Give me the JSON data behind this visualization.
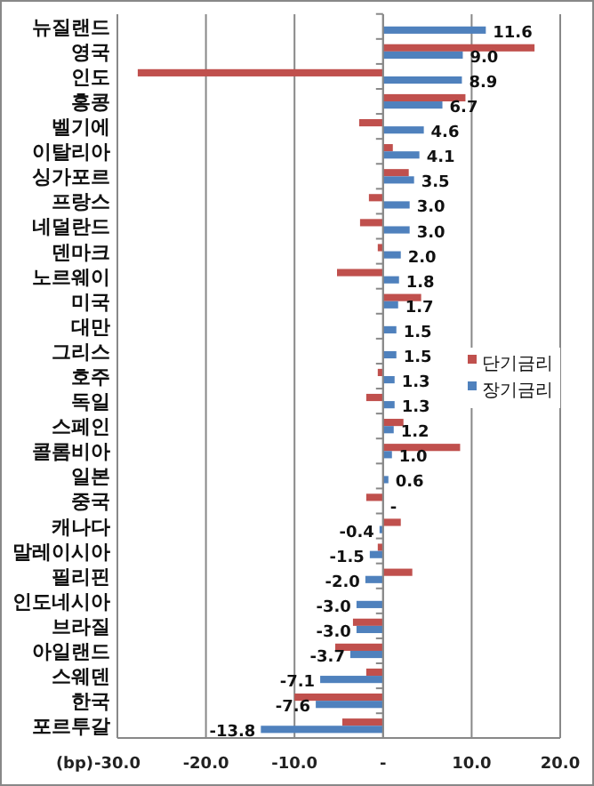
{
  "chart_data": {
    "type": "bar",
    "orientation": "horizontal",
    "categories": [
      "뉴질랜드",
      "영국",
      "인도",
      "홍콩",
      "벨기에",
      "이탈리아",
      "싱가포르",
      "프랑스",
      "네덜란드",
      "덴마크",
      "노르웨이",
      "미국",
      "대만",
      "그리스",
      "호주",
      "독일",
      "스페인",
      "콜롬비아",
      "일본",
      "중국",
      "캐나다",
      "말레이시아",
      "필리핀",
      "인도네시아",
      "브라질",
      "아일랜드",
      "스웨덴",
      "한국",
      "포르투갈"
    ],
    "series": [
      {
        "name": "단기금리",
        "color": "#c0504d",
        "values": [
          0,
          17.1,
          -27.7,
          9.3,
          -2.7,
          1.1,
          2.9,
          -1.6,
          -2.6,
          -0.6,
          -5.2,
          4.3,
          null,
          0,
          -0.6,
          -1.9,
          2.3,
          8.7,
          null,
          -1.9,
          2.0,
          -0.6,
          3.3,
          0,
          -3.4,
          -5.4,
          -1.9,
          -10.0,
          -4.6
        ]
      },
      {
        "name": "장기금리",
        "color": "#4f81bd",
        "values": [
          11.6,
          9.0,
          8.9,
          6.7,
          4.6,
          4.1,
          3.5,
          3.0,
          3.0,
          2.0,
          1.8,
          1.7,
          1.5,
          1.5,
          1.3,
          1.3,
          1.2,
          1.0,
          0.6,
          0,
          -0.4,
          -1.5,
          -2.0,
          -3.0,
          -3.0,
          -3.7,
          -7.1,
          -7.6,
          -13.8
        ],
        "value_labels": [
          "11.6",
          "9.0",
          "8.9",
          "6.7",
          "4.6",
          "4.1",
          "3.5",
          "3.0",
          "3.0",
          "2.0",
          "1.8",
          "1.7",
          "1.5",
          "1.5",
          "1.3",
          "1.3",
          "1.2",
          "1.0",
          "0.6",
          "-",
          "-0.4",
          "-1.5",
          "-2.0",
          "-3.0",
          "-3.0",
          "-3.7",
          "-7.1",
          "-7.6",
          "-13.8"
        ]
      }
    ],
    "xlim": [
      -30,
      20
    ],
    "xticks": [
      {
        "value": -30,
        "label": "-30.0"
      },
      {
        "value": -20,
        "label": "-20.0"
      },
      {
        "value": -10,
        "label": "-10.0"
      },
      {
        "value": 0,
        "label": "-"
      },
      {
        "value": 10,
        "label": "10.0"
      },
      {
        "value": 20,
        "label": "20.0"
      }
    ],
    "annotations": [
      "(bp)"
    ],
    "grid": "x",
    "legend": "right"
  }
}
